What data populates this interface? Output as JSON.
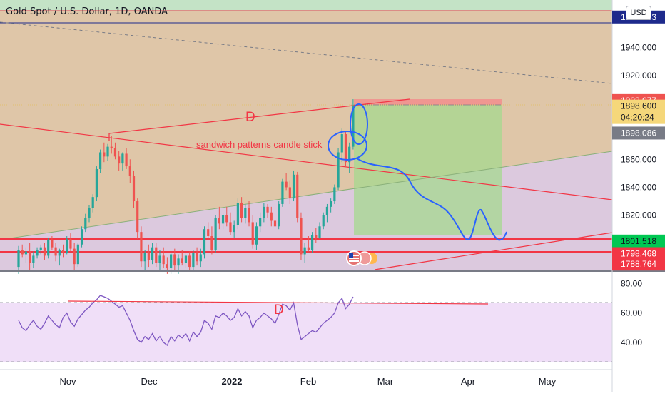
{
  "header": {
    "title": "Gold Spot / U.S. Dollar, 1D, OANDA",
    "currency_button": "USD"
  },
  "colors": {
    "up": "#26a69a",
    "down": "#ef5350",
    "drawing_red": "#f23645",
    "drawing_blue": "#2962ff",
    "rsi_line": "#7e57c2",
    "bg_zone_orange": "#dfc6a8",
    "bg_zone_purple": "#dcc9de",
    "bg_zone_green_top": "#c4e3c6",
    "target_box": "#a5d88f",
    "rsi_band": "#f0dff8"
  },
  "price_axis": {
    "ticks": [
      "1940.000",
      "1920.000",
      "1880.000",
      "1860.000",
      "1840.000",
      "1820.000"
    ],
    "ylim": [
      1781,
      1974
    ],
    "labels": [
      {
        "text": "1961.853",
        "value": 1961.853,
        "color": "#1e2a8c"
      },
      {
        "text": "1902.077",
        "value": 1902.077,
        "color": "#ef5350"
      },
      {
        "text": "1898.600",
        "value": 1898.6,
        "color": "#f5d77a",
        "sub": "04:20:24"
      },
      {
        "text": "1898.086",
        "value": 1878.8,
        "color": "#787b86"
      },
      {
        "text": "1801.518",
        "value": 1801.518,
        "color": "#00c853"
      },
      {
        "text": "1798.468",
        "value": 1792.5,
        "color": "#f23645"
      },
      {
        "text": "1788.764",
        "value": 1785.0,
        "color": "#f23645"
      }
    ]
  },
  "rsi_axis": {
    "ticks": [
      "80.00",
      "60.00",
      "40.00"
    ],
    "ylim": [
      22,
      88
    ]
  },
  "time_axis": {
    "labels": [
      "Nov",
      "Dec",
      "2022",
      "Feb",
      "Mar",
      "Apr",
      "May"
    ],
    "bold": [
      "2022"
    ]
  },
  "annotations": {
    "pattern_label": "sandwich patterns candle stick",
    "divergence_price": "D",
    "divergence_rsi": "D"
  },
  "chart_data": {
    "type": "candlestick",
    "title": "Gold Spot / U.S. Dollar, 1D, OANDA",
    "series": [
      {
        "name": "",
        "ohlc": [
          [
            1783,
            1798,
            1778,
            1795
          ],
          [
            1795,
            1799,
            1790,
            1792
          ],
          [
            1792,
            1797,
            1786,
            1794
          ],
          [
            1794,
            1800,
            1780,
            1786
          ],
          [
            1786,
            1794,
            1782,
            1791
          ],
          [
            1791,
            1797,
            1789,
            1795
          ],
          [
            1795,
            1799,
            1792,
            1797
          ],
          [
            1797,
            1800,
            1788,
            1791
          ],
          [
            1791,
            1804,
            1789,
            1802
          ],
          [
            1802,
            1805,
            1795,
            1797
          ],
          [
            1797,
            1800,
            1787,
            1791
          ],
          [
            1791,
            1796,
            1784,
            1795
          ],
          [
            1795,
            1799,
            1790,
            1793
          ],
          [
            1793,
            1805,
            1792,
            1803
          ],
          [
            1803,
            1807,
            1794,
            1796
          ],
          [
            1796,
            1800,
            1780,
            1785
          ],
          [
            1785,
            1800,
            1783,
            1799
          ],
          [
            1799,
            1812,
            1797,
            1810
          ],
          [
            1810,
            1821,
            1808,
            1818
          ],
          [
            1818,
            1827,
            1815,
            1825
          ],
          [
            1825,
            1835,
            1822,
            1833
          ],
          [
            1833,
            1855,
            1830,
            1853
          ],
          [
            1853,
            1867,
            1850,
            1865
          ],
          [
            1865,
            1872,
            1858,
            1862
          ],
          [
            1862,
            1871,
            1859,
            1869
          ],
          [
            1869,
            1877,
            1864,
            1868
          ],
          [
            1868,
            1872,
            1860,
            1862
          ],
          [
            1862,
            1866,
            1852,
            1857
          ],
          [
            1857,
            1865,
            1852,
            1864
          ],
          [
            1864,
            1868,
            1853,
            1855
          ],
          [
            1855,
            1860,
            1843,
            1848
          ],
          [
            1848,
            1852,
            1825,
            1830
          ],
          [
            1830,
            1832,
            1803,
            1808
          ],
          [
            1808,
            1812,
            1783,
            1787
          ],
          [
            1787,
            1795,
            1780,
            1793
          ],
          [
            1793,
            1799,
            1783,
            1788
          ],
          [
            1788,
            1800,
            1785,
            1797
          ],
          [
            1797,
            1800,
            1783,
            1786
          ],
          [
            1786,
            1795,
            1780,
            1791
          ],
          [
            1791,
            1797,
            1782,
            1785
          ],
          [
            1785,
            1790,
            1778,
            1782
          ],
          [
            1782,
            1794,
            1778,
            1792
          ],
          [
            1792,
            1796,
            1780,
            1784
          ],
          [
            1784,
            1792,
            1778,
            1789
          ],
          [
            1789,
            1795,
            1784,
            1786
          ],
          [
            1786,
            1794,
            1782,
            1791
          ],
          [
            1791,
            1794,
            1780,
            1783
          ],
          [
            1783,
            1795,
            1780,
            1793
          ],
          [
            1793,
            1797,
            1784,
            1787
          ],
          [
            1787,
            1796,
            1783,
            1792
          ],
          [
            1792,
            1812,
            1789,
            1810
          ],
          [
            1810,
            1815,
            1802,
            1805
          ],
          [
            1805,
            1812,
            1792,
            1795
          ],
          [
            1795,
            1820,
            1793,
            1818
          ],
          [
            1818,
            1826,
            1810,
            1814
          ],
          [
            1814,
            1822,
            1810,
            1820
          ],
          [
            1820,
            1826,
            1812,
            1815
          ],
          [
            1815,
            1822,
            1806,
            1808
          ],
          [
            1808,
            1816,
            1804,
            1813
          ],
          [
            1813,
            1832,
            1810,
            1829
          ],
          [
            1829,
            1833,
            1815,
            1818
          ],
          [
            1818,
            1828,
            1814,
            1825
          ],
          [
            1825,
            1830,
            1812,
            1815
          ],
          [
            1815,
            1820,
            1796,
            1799
          ],
          [
            1799,
            1815,
            1795,
            1812
          ],
          [
            1812,
            1822,
            1808,
            1818
          ],
          [
            1818,
            1829,
            1815,
            1826
          ],
          [
            1826,
            1828,
            1818,
            1822
          ],
          [
            1822,
            1826,
            1812,
            1816
          ],
          [
            1816,
            1820,
            1808,
            1812
          ],
          [
            1812,
            1830,
            1810,
            1828
          ],
          [
            1828,
            1846,
            1826,
            1844
          ],
          [
            1844,
            1850,
            1838,
            1840
          ],
          [
            1840,
            1845,
            1828,
            1832
          ],
          [
            1832,
            1852,
            1830,
            1849
          ],
          [
            1849,
            1851,
            1815,
            1818
          ],
          [
            1818,
            1822,
            1788,
            1792
          ],
          [
            1792,
            1800,
            1786,
            1797
          ],
          [
            1797,
            1805,
            1794,
            1795
          ],
          [
            1795,
            1808,
            1793,
            1806
          ],
          [
            1806,
            1811,
            1800,
            1804
          ],
          [
            1804,
            1815,
            1803,
            1812
          ],
          [
            1812,
            1822,
            1810,
            1820
          ],
          [
            1820,
            1828,
            1815,
            1826
          ],
          [
            1826,
            1832,
            1822,
            1830
          ],
          [
            1830,
            1842,
            1828,
            1840
          ],
          [
            1840,
            1868,
            1838,
            1865
          ],
          [
            1865,
            1882,
            1858,
            1878
          ],
          [
            1878,
            1880,
            1855,
            1858
          ],
          [
            1858,
            1872,
            1850,
            1869
          ],
          [
            1869,
            1903,
            1867,
            1898
          ]
        ]
      }
    ],
    "rsi": [
      55,
      50,
      48,
      52,
      55,
      51,
      49,
      53,
      58,
      55,
      52,
      50,
      57,
      60,
      54,
      51,
      56,
      59,
      62,
      64,
      67,
      69,
      72,
      71,
      70,
      68,
      66,
      64,
      65,
      60,
      55,
      48,
      42,
      40,
      44,
      42,
      46,
      41,
      44,
      40,
      38,
      44,
      41,
      45,
      43,
      46,
      41,
      47,
      44,
      47,
      55,
      53,
      49,
      58,
      57,
      60,
      58,
      55,
      57,
      63,
      58,
      61,
      58,
      50,
      55,
      57,
      60,
      58,
      56,
      53,
      59,
      66,
      65,
      62,
      67,
      52,
      42,
      44,
      46,
      48,
      47,
      50,
      53,
      55,
      57,
      60,
      67,
      70,
      63,
      66,
      71
    ]
  }
}
